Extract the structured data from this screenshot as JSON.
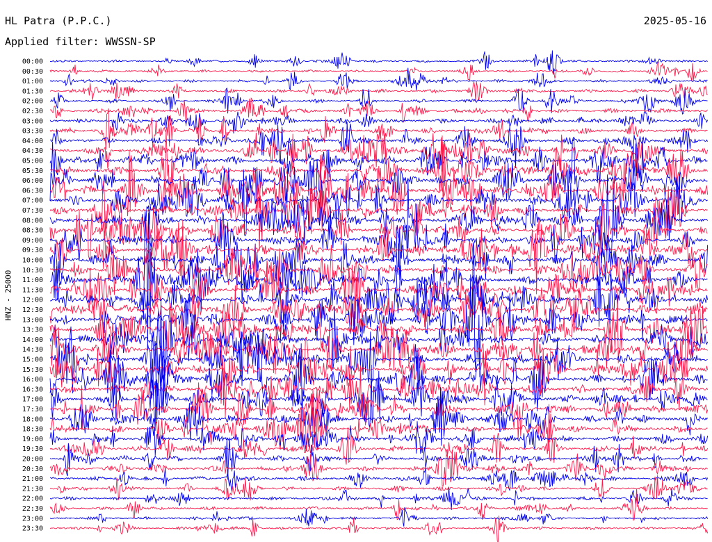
{
  "header": {
    "station": "HL Patra (P.P.C.)",
    "date": "2025-05-16",
    "filter": "Applied filter: WWSSN-SP"
  },
  "axis": {
    "channel_label": "HNZ - 25000"
  },
  "colors": {
    "trace_primary": "#0000ee",
    "trace_secondary": "#ff1a4b",
    "background": "#ffffff"
  },
  "chart_data": {
    "type": "line",
    "title": "",
    "ylabel": "HNZ - 25000",
    "xlabel": "",
    "grid": false,
    "row_interval_minutes": 30,
    "rows": [
      "00:00",
      "00:30",
      "01:00",
      "01:30",
      "02:00",
      "02:30",
      "03:00",
      "03:30",
      "04:00",
      "04:30",
      "05:00",
      "05:30",
      "06:00",
      "06:30",
      "07:00",
      "07:30",
      "08:00",
      "08:30",
      "09:00",
      "09:30",
      "10:00",
      "10:30",
      "11:00",
      "11:30",
      "12:00",
      "12:30",
      "13:00",
      "13:30",
      "14:00",
      "14:30",
      "15:00",
      "15:30",
      "16:00",
      "16:30",
      "17:00",
      "17:30",
      "18:00",
      "18:30",
      "19:00",
      "19:30",
      "20:00",
      "20:30",
      "21:00",
      "21:30",
      "22:00",
      "22:30",
      "23:00",
      "23:30"
    ],
    "activity_level": [
      0.2,
      0.2,
      0.25,
      0.3,
      0.35,
      0.4,
      0.45,
      0.55,
      0.65,
      0.75,
      0.85,
      0.95,
      1.0,
      1.0,
      1.0,
      1.0,
      1.0,
      1.0,
      1.0,
      1.0,
      1.0,
      1.0,
      1.0,
      1.0,
      1.0,
      1.0,
      1.0,
      1.0,
      1.0,
      1.0,
      1.0,
      1.0,
      1.0,
      0.95,
      0.9,
      0.85,
      0.8,
      0.75,
      0.7,
      0.62,
      0.55,
      0.48,
      0.4,
      0.35,
      0.3,
      0.28,
      0.25,
      0.25
    ],
    "row_colors": [
      "blue",
      "red"
    ]
  }
}
